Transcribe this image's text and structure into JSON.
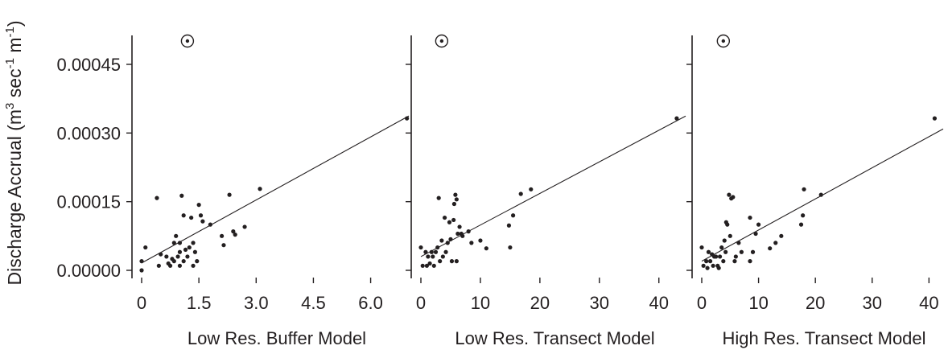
{
  "ylabel": {
    "prefix": "Discharge Accrual (m",
    "sup1": "3",
    "mid": " sec",
    "sup2": "-1",
    "mid2": " m",
    "sup3": "-1",
    "suffix": ")"
  },
  "y_ticks": [
    "0.00000",
    "0.00015",
    "0.00030",
    "0.00045"
  ],
  "colors": {
    "ink": "#231f20",
    "background": "#ffffff"
  },
  "chart_data": [
    {
      "type": "scatter",
      "xlabel": "Low Res. Buffer Model",
      "ylabel": "Discharge Accrual (m3 sec-1 m-1)",
      "x_ticks": [
        "0",
        "1.5",
        "3.0",
        "4.5",
        "6.0"
      ],
      "xlim": [
        -0.2,
        7.0
      ],
      "ylim": [
        -1e-05,
        0.00052
      ],
      "trendline": {
        "slope": 4.59e-05,
        "intercept": 1.6e-05
      },
      "outlier": {
        "x": 1.2,
        "y": 0.0005,
        "marker": "circled-dot"
      },
      "points": [
        [
          0.0,
          0.0
        ],
        [
          0.0,
          2e-05
        ],
        [
          0.1,
          5e-05
        ],
        [
          0.4,
          0.000158
        ],
        [
          0.45,
          1e-05
        ],
        [
          0.5,
          3.5e-05
        ],
        [
          0.65,
          3e-05
        ],
        [
          0.7,
          1.5e-05
        ],
        [
          0.75,
          1e-05
        ],
        [
          0.8,
          2.5e-05
        ],
        [
          0.85,
          2e-05
        ],
        [
          0.85,
          6e-05
        ],
        [
          0.9,
          7.5e-05
        ],
        [
          0.95,
          3e-05
        ],
        [
          1.0,
          1e-05
        ],
        [
          1.0,
          4e-05
        ],
        [
          1.0,
          6e-05
        ],
        [
          1.05,
          0.000163
        ],
        [
          1.1,
          0.00012
        ],
        [
          1.1,
          2e-05
        ],
        [
          1.15,
          4.5e-05
        ],
        [
          1.2,
          3e-05
        ],
        [
          1.25,
          5e-05
        ],
        [
          1.3,
          0.000115
        ],
        [
          1.35,
          6e-05
        ],
        [
          1.35,
          1e-05
        ],
        [
          1.4,
          4e-05
        ],
        [
          1.45,
          2e-05
        ],
        [
          1.5,
          0.000143
        ],
        [
          1.55,
          0.00012
        ],
        [
          1.6,
          0.000107
        ],
        [
          1.8,
          0.0001
        ],
        [
          2.1,
          7.5e-05
        ],
        [
          2.15,
          5.5e-05
        ],
        [
          2.3,
          0.000165
        ],
        [
          2.4,
          8.5e-05
        ],
        [
          2.45,
          7.8e-05
        ],
        [
          2.7,
          9.5e-05
        ],
        [
          3.1,
          0.000178
        ],
        [
          6.95,
          0.000332
        ]
      ]
    },
    {
      "type": "scatter",
      "xlabel": "Low Res. Transect Model",
      "ylabel": "",
      "x_ticks": [
        "0",
        "10",
        "20",
        "30",
        "40"
      ],
      "xlim": [
        -1.2,
        44.5
      ],
      "ylim": [
        -1e-05,
        0.00052
      ],
      "trendline": {
        "slope": 6.9e-06,
        "intercept": 3e-05
      },
      "outlier": {
        "x": 3.5,
        "y": 0.0005,
        "marker": "circled-dot"
      },
      "points": [
        [
          0.0,
          5e-05
        ],
        [
          0.3,
          1e-05
        ],
        [
          0.8,
          4e-05
        ],
        [
          1.0,
          1e-05
        ],
        [
          1.2,
          3e-05
        ],
        [
          1.5,
          1.5e-05
        ],
        [
          1.8,
          4e-05
        ],
        [
          2.0,
          3e-05
        ],
        [
          2.2,
          1e-05
        ],
        [
          2.5,
          4e-05
        ],
        [
          2.8,
          5e-05
        ],
        [
          3.0,
          0.000158
        ],
        [
          3.2,
          2e-05
        ],
        [
          3.5,
          6.5e-05
        ],
        [
          3.7,
          3e-05
        ],
        [
          4.0,
          0.000115
        ],
        [
          4.2,
          4e-05
        ],
        [
          4.5,
          6e-05
        ],
        [
          4.8,
          0.000105
        ],
        [
          5.0,
          6.8e-05
        ],
        [
          5.2,
          2e-05
        ],
        [
          5.5,
          0.00011
        ],
        [
          5.6,
          0.000145
        ],
        [
          5.8,
          0.000165
        ],
        [
          6.0,
          0.000155
        ],
        [
          6.0,
          2e-05
        ],
        [
          6.2,
          8e-05
        ],
        [
          6.5,
          9.5e-05
        ],
        [
          6.8,
          8e-05
        ],
        [
          7.0,
          7.5e-05
        ],
        [
          8.0,
          8.5e-05
        ],
        [
          8.5,
          6e-05
        ],
        [
          10.0,
          6.5e-05
        ],
        [
          11.0,
          4.8e-05
        ],
        [
          14.8,
          9.8e-05
        ],
        [
          15.0,
          5e-05
        ],
        [
          15.5,
          0.00012
        ],
        [
          16.8,
          0.000167
        ],
        [
          18.5,
          0.000177
        ],
        [
          43.0,
          0.000332
        ]
      ]
    },
    {
      "type": "scatter",
      "xlabel": "High Res. Transect Model",
      "ylabel": "",
      "x_ticks": [
        "0",
        "10",
        "20",
        "30",
        "40"
      ],
      "xlim": [
        -0.8,
        42.5
      ],
      "ylim": [
        -1e-05,
        0.00052
      ],
      "trendline": {
        "slope": 6.8e-06,
        "intercept": 2e-05
      },
      "outlier": {
        "x": 3.8,
        "y": 0.0005,
        "marker": "circled-dot"
      },
      "points": [
        [
          0.0,
          5e-05
        ],
        [
          0.3,
          1e-05
        ],
        [
          0.8,
          2e-05
        ],
        [
          1.0,
          5e-06
        ],
        [
          1.2,
          4e-05
        ],
        [
          1.5,
          2e-05
        ],
        [
          1.8,
          3.5e-05
        ],
        [
          2.0,
          1e-05
        ],
        [
          2.2,
          3e-05
        ],
        [
          2.5,
          3e-05
        ],
        [
          2.8,
          1e-05
        ],
        [
          3.0,
          5e-06
        ],
        [
          3.2,
          3e-05
        ],
        [
          3.5,
          5e-05
        ],
        [
          3.8,
          2e-05
        ],
        [
          4.0,
          6.5e-05
        ],
        [
          4.2,
          4e-05
        ],
        [
          4.3,
          0.000105
        ],
        [
          4.5,
          0.0001
        ],
        [
          4.8,
          0.000165
        ],
        [
          5.0,
          7.5e-05
        ],
        [
          5.2,
          0.000157
        ],
        [
          5.5,
          0.00016
        ],
        [
          5.8,
          2e-05
        ],
        [
          6.0,
          3e-05
        ],
        [
          6.5,
          6e-05
        ],
        [
          7.0,
          4e-05
        ],
        [
          8.5,
          0.000115
        ],
        [
          8.5,
          2e-05
        ],
        [
          9.0,
          4e-05
        ],
        [
          9.5,
          8e-05
        ],
        [
          10.0,
          0.0001
        ],
        [
          12.0,
          4.8e-05
        ],
        [
          13.0,
          6e-05
        ],
        [
          14.0,
          7.5e-05
        ],
        [
          17.5,
          0.0001
        ],
        [
          17.8,
          0.00012
        ],
        [
          18.0,
          0.000177
        ],
        [
          21.0,
          0.000165
        ],
        [
          41.0,
          0.000332
        ]
      ]
    }
  ]
}
